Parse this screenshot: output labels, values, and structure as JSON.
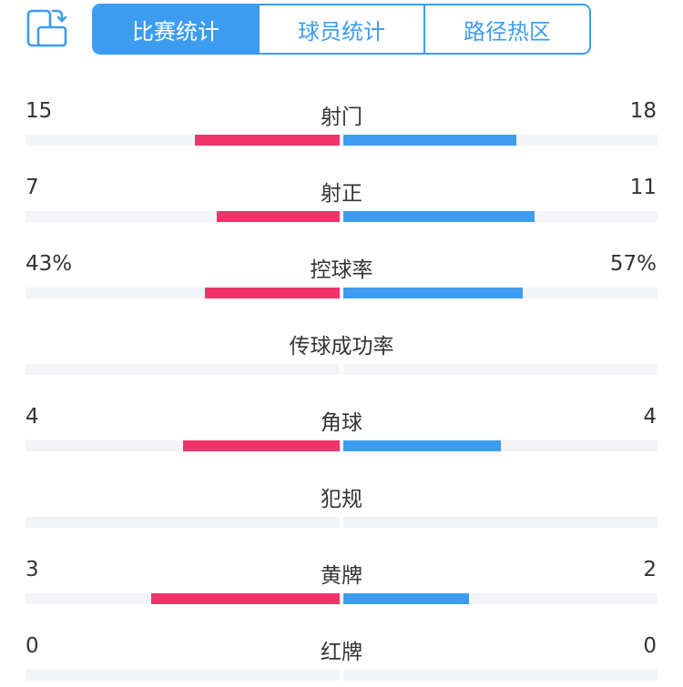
{
  "tabs": [
    {
      "label": "比赛统计",
      "active": true
    },
    {
      "label": "球员统计",
      "active": false
    },
    {
      "label": "路径热区",
      "active": false
    }
  ],
  "colors": {
    "accent": "#3d9cf0",
    "home": "#f0346a",
    "away": "#3d9cf0",
    "track": "#f3f4f7"
  },
  "stats": [
    {
      "label": "射门",
      "home": "15",
      "away": "18",
      "home_fill": 0.46,
      "away_fill": 0.55
    },
    {
      "label": "射正",
      "home": "7",
      "away": "11",
      "home_fill": 0.39,
      "away_fill": 0.61
    },
    {
      "label": "控球率",
      "home": "43%",
      "away": "57%",
      "home_fill": 0.43,
      "away_fill": 0.57
    },
    {
      "label": "传球成功率",
      "home": "",
      "away": "",
      "home_fill": 0,
      "away_fill": 0
    },
    {
      "label": "角球",
      "home": "4",
      "away": "4",
      "home_fill": 0.5,
      "away_fill": 0.5
    },
    {
      "label": "犯规",
      "home": "",
      "away": "",
      "home_fill": 0,
      "away_fill": 0
    },
    {
      "label": "黄牌",
      "home": "3",
      "away": "2",
      "home_fill": 0.6,
      "away_fill": 0.4
    },
    {
      "label": "红牌",
      "home": "0",
      "away": "0",
      "home_fill": 0,
      "away_fill": 0
    }
  ]
}
